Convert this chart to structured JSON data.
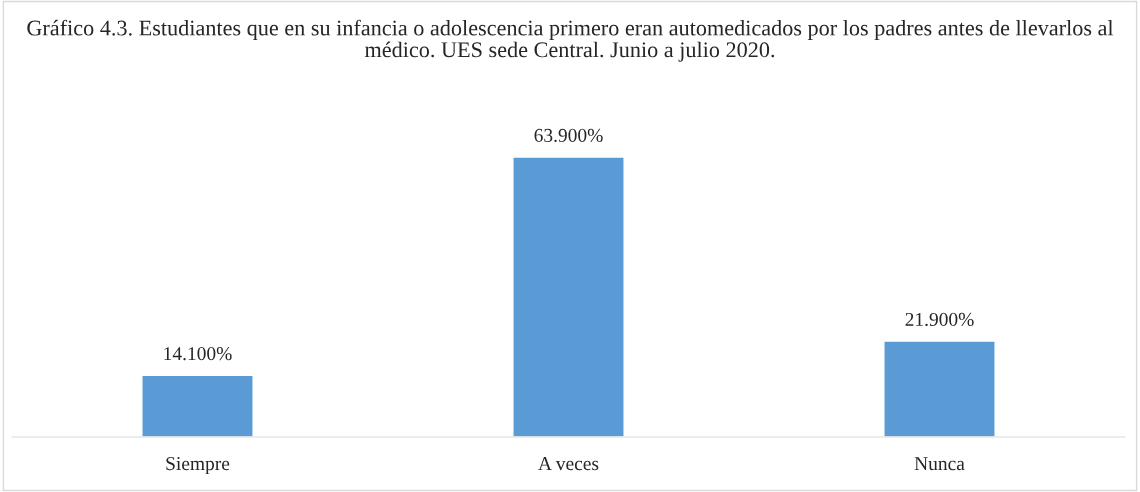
{
  "chart_data": {
    "type": "bar",
    "title": "Gráfico 4.3. Estudiantes que en su infancia o adolescencia primero eran automedicados por los padres antes de llevarlos al médico. UES sede Central. Junio a julio 2020.",
    "categories": [
      "Siempre",
      "A veces",
      "Nunca"
    ],
    "values": [
      14.1,
      63.9,
      21.9
    ],
    "value_labels": [
      "14.100%",
      "63.900%",
      "21.900%"
    ],
    "color": "#5b9bd5",
    "grid": false,
    "legend": false
  }
}
